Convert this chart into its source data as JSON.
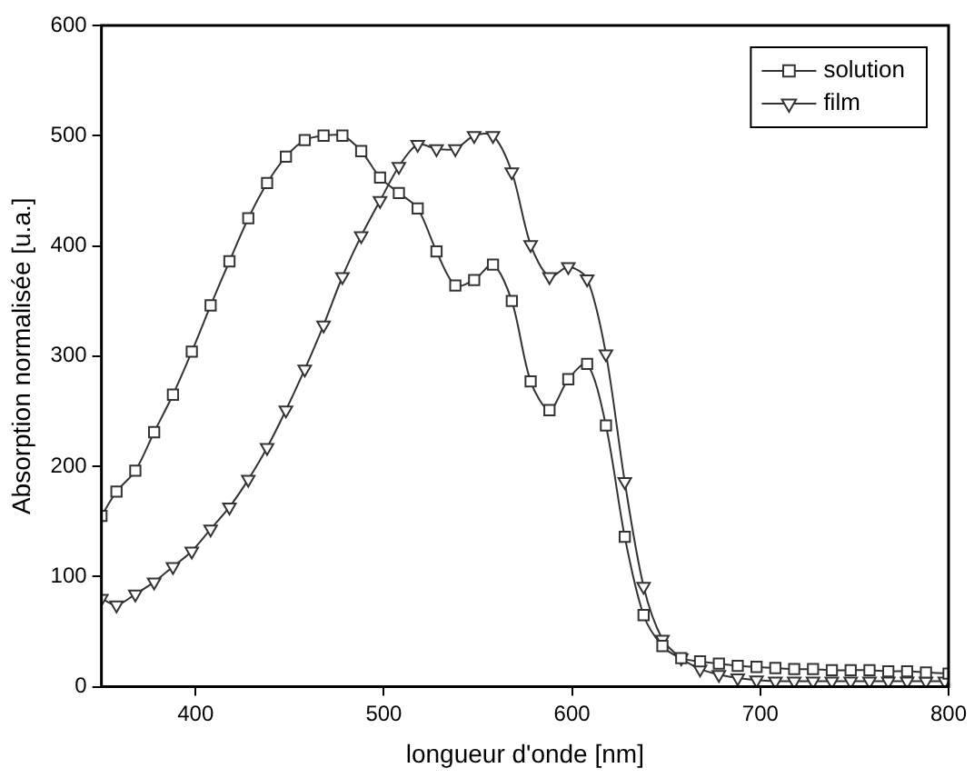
{
  "chart_data": {
    "type": "line",
    "xlabel": "longueur d'onde [nm]",
    "ylabel": "Absorption normalisée [u.a.]",
    "xlim": [
      350,
      800
    ],
    "xticks": [
      400,
      500,
      600,
      700,
      800
    ],
    "ylim": [
      0,
      600
    ],
    "yticks": [
      0,
      100,
      200,
      300,
      400,
      500,
      600
    ],
    "grid": false,
    "legend": "top right",
    "line_style": "solid",
    "series": [
      {
        "name": "solution",
        "color": "#333333",
        "marker": "square",
        "x": [
          350,
          358,
          368,
          378,
          388,
          398,
          408,
          418,
          428,
          438,
          448,
          458,
          468,
          478,
          488,
          498,
          508,
          518,
          528,
          538,
          548,
          558,
          568,
          578,
          588,
          598,
          608,
          618,
          628,
          638,
          648,
          658,
          668,
          678,
          688,
          698,
          708,
          718,
          728,
          738,
          748,
          758,
          768,
          778,
          788,
          800
        ],
        "values": [
          155,
          177,
          196,
          231,
          265,
          304,
          346,
          386,
          425,
          457,
          481,
          496,
          500,
          500,
          486,
          462,
          448,
          434,
          395,
          364,
          369,
          383,
          350,
          277,
          251,
          279,
          293,
          237,
          136,
          65,
          37,
          26,
          23,
          21,
          19,
          18,
          17,
          16,
          16,
          15,
          15,
          15,
          14,
          14,
          13,
          12
        ]
      },
      {
        "name": "film",
        "color": "#333333",
        "marker": "triangle",
        "x": [
          350,
          358,
          368,
          378,
          388,
          398,
          408,
          418,
          428,
          438,
          448,
          458,
          468,
          478,
          488,
          498,
          508,
          518,
          528,
          538,
          548,
          558,
          568,
          578,
          588,
          598,
          608,
          618,
          628,
          638,
          648,
          658,
          668,
          678,
          688,
          698,
          708,
          718,
          728,
          738,
          748,
          758,
          768,
          778,
          788,
          798
        ],
        "values": [
          80,
          74,
          84,
          95,
          109,
          123,
          143,
          163,
          188,
          217,
          251,
          288,
          328,
          372,
          409,
          441,
          472,
          492,
          488,
          488,
          500,
          500,
          467,
          401,
          372,
          381,
          370,
          302,
          186,
          91,
          43,
          26,
          16,
          11,
          8,
          6,
          5,
          5,
          5,
          5,
          5,
          5,
          5,
          5,
          5,
          5
        ]
      }
    ]
  }
}
